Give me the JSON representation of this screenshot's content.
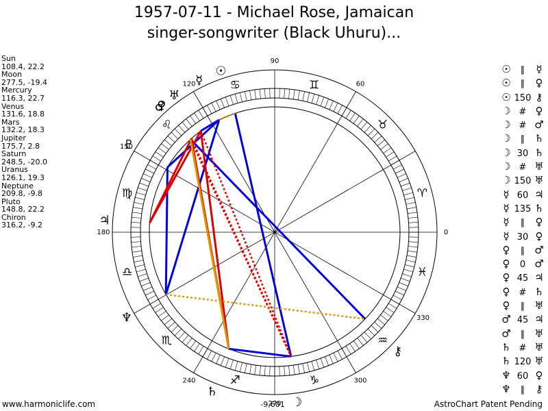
{
  "title_line1": "1957-07-11 - Michael Rose, Jamaican",
  "title_line2": "singer-songwriter (Black Uhuru)...",
  "footer_left": "www.harmoniclife.com",
  "footer_right": "AstroChart Patent Pending",
  "chart_data": {
    "type": "astrological-wheel",
    "degree_labels": [
      "0",
      "60",
      "90",
      "120",
      "150",
      "180",
      "240",
      "270",
      "300",
      "330"
    ],
    "center_value_label": "-9,601",
    "planets": [
      {
        "name": "Sun",
        "values": "108.4, 22.2",
        "longitude": 108.4,
        "glyph": "☉"
      },
      {
        "name": "Moon",
        "values": "277.5, -19.4",
        "longitude": 277.5,
        "glyph": "☽"
      },
      {
        "name": "Mercury",
        "values": "116.3, 22.7",
        "longitude": 116.3,
        "glyph": "☿"
      },
      {
        "name": "Venus",
        "values": "131.6, 18.8",
        "longitude": 131.6,
        "glyph": "♀"
      },
      {
        "name": "Mars",
        "values": "132.2, 18.3",
        "longitude": 132.2,
        "glyph": "♂"
      },
      {
        "name": "Jupiter",
        "values": "175.7, 2.8",
        "longitude": 175.7,
        "glyph": "♃"
      },
      {
        "name": "Saturn",
        "values": "248.5, -20.0",
        "longitude": 248.5,
        "glyph": "♄"
      },
      {
        "name": "Uranus",
        "values": "126.1, 19.3",
        "longitude": 126.1,
        "glyph": "♅"
      },
      {
        "name": "Neptune",
        "values": "209.8, -9.8",
        "longitude": 209.8,
        "glyph": "♆"
      },
      {
        "name": "Pluto",
        "values": "148.8, 22.2",
        "longitude": 148.8,
        "glyph": "♇"
      },
      {
        "name": "Chiron",
        "values": "316.2, -9.2",
        "longitude": 316.2,
        "glyph": "⚷"
      }
    ],
    "signs": [
      {
        "glyph": "♈",
        "longitude": 15
      },
      {
        "glyph": "♉",
        "longitude": 45
      },
      {
        "glyph": "♊",
        "longitude": 75
      },
      {
        "glyph": "♋",
        "longitude": 105
      },
      {
        "glyph": "♌",
        "longitude": 135
      },
      {
        "glyph": "♍",
        "longitude": 165
      },
      {
        "glyph": "♎",
        "longitude": 195
      },
      {
        "glyph": "♏",
        "longitude": 225
      },
      {
        "glyph": "♐",
        "longitude": 255
      },
      {
        "glyph": "♑",
        "longitude": 285
      },
      {
        "glyph": "♒",
        "longitude": 315
      },
      {
        "glyph": "♓",
        "longitude": 345
      }
    ],
    "aspect_lines": [
      {
        "from": "Sun",
        "to": "Moon",
        "color": "#0000dd",
        "style": "solid"
      },
      {
        "from": "Mercury",
        "to": "Pluto",
        "color": "#0000dd",
        "style": "solid"
      },
      {
        "from": "Mercury",
        "to": "Neptune",
        "color": "#0000dd",
        "style": "solid"
      },
      {
        "from": "Pluto",
        "to": "Neptune",
        "color": "#0000dd",
        "style": "solid"
      },
      {
        "from": "Mercury",
        "to": "Uranus",
        "color": "#0000dd",
        "style": "solid"
      },
      {
        "from": "Saturn",
        "to": "Moon",
        "color": "#0000dd",
        "style": "solid"
      },
      {
        "from": "Mars",
        "to": "Chiron",
        "color": "#0000dd",
        "style": "solid"
      },
      {
        "from": "Venus",
        "to": "Jupiter",
        "color": "#dd0000",
        "style": "solid"
      },
      {
        "from": "Uranus",
        "to": "Jupiter",
        "color": "#dd0000",
        "style": "solid"
      },
      {
        "from": "Uranus",
        "to": "Saturn",
        "color": "#dd0000",
        "style": "solid"
      },
      {
        "from": "Venus",
        "to": "Saturn",
        "color": "#dd0000",
        "style": "solid"
      },
      {
        "from": "Venus",
        "to": "Moon",
        "color": "#dd0000",
        "style": "dotted"
      },
      {
        "from": "Mars",
        "to": "Moon",
        "color": "#dd0000",
        "style": "dotted"
      },
      {
        "from": "Uranus",
        "to": "Moon",
        "color": "#dd0000",
        "style": "dotted"
      },
      {
        "from": "Mars",
        "to": "Saturn",
        "color": "#dd9900",
        "style": "solid"
      },
      {
        "from": "Sun",
        "to": "Mercury",
        "color": "#dd9900",
        "style": "dotted"
      },
      {
        "from": "Neptune",
        "to": "Chiron",
        "color": "#dd9900",
        "style": "dotted"
      }
    ],
    "aspect_list": [
      {
        "p1": "☉",
        "asp": "∥",
        "p2": "☿"
      },
      {
        "p1": "☉",
        "asp": "∥",
        "p2": "♀"
      },
      {
        "p1": "☉",
        "asp": "150",
        "p2": "⚷"
      },
      {
        "p1": "☽",
        "asp": "#",
        "p2": "♀"
      },
      {
        "p1": "☽",
        "asp": "#",
        "p2": "♂"
      },
      {
        "p1": "☽",
        "asp": "∥",
        "p2": "♄"
      },
      {
        "p1": "☽",
        "asp": "30",
        "p2": "♄"
      },
      {
        "p1": "☽",
        "asp": "#",
        "p2": "♅"
      },
      {
        "p1": "☽",
        "asp": "150",
        "p2": "♅"
      },
      {
        "p1": "☿",
        "asp": "60",
        "p2": "♃"
      },
      {
        "p1": "☿",
        "asp": "135",
        "p2": "♄"
      },
      {
        "p1": "☿",
        "asp": "∥",
        "p2": "♀"
      },
      {
        "p1": "☿",
        "asp": "30",
        "p2": "♀"
      },
      {
        "p1": "♀",
        "asp": "∥",
        "p2": "♂"
      },
      {
        "p1": "♀",
        "asp": "0",
        "p2": "♂"
      },
      {
        "p1": "♀",
        "asp": "45",
        "p2": "♃"
      },
      {
        "p1": "♀",
        "asp": "#",
        "p2": "♄"
      },
      {
        "p1": "♀",
        "asp": "∥",
        "p2": "♅"
      },
      {
        "p1": "♂",
        "asp": "45",
        "p2": "♃"
      },
      {
        "p1": "♂",
        "asp": "∥",
        "p2": "♅"
      },
      {
        "p1": "♄",
        "asp": "#",
        "p2": "♅"
      },
      {
        "p1": "♄",
        "asp": "120",
        "p2": "♅"
      },
      {
        "p1": "♆",
        "asp": "60",
        "p2": "♀"
      },
      {
        "p1": "♆",
        "asp": "∥",
        "p2": "⚷"
      }
    ]
  }
}
